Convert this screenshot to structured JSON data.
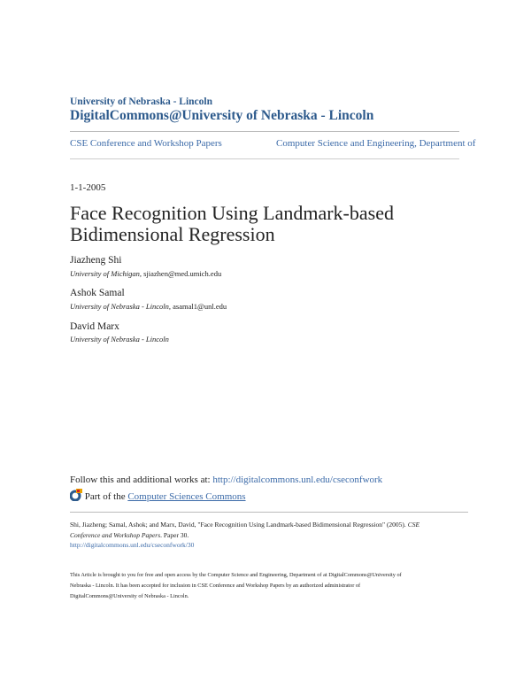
{
  "header": {
    "institution": "University of Nebraska - Lincoln",
    "repository": "DigitalCommons@University of Nebraska - Lincoln"
  },
  "nav": {
    "series": "CSE Conference and Workshop Papers",
    "department": "Computer Science and Engineering, Department of"
  },
  "date": "1-1-2005",
  "title_line1": "Face Recognition Using Landmark-based",
  "title_line2": "Bidimensional Regression",
  "authors": [
    {
      "name": "Jiazheng Shi",
      "affiliation": "University of Michigan",
      "email": "sjiazhen@med.umich.edu"
    },
    {
      "name": "Ashok Samal",
      "affiliation": "University of Nebraska - Lincoln",
      "email": "asamal1@unl.edu"
    },
    {
      "name": "David Marx",
      "affiliation": "University of Nebraska - Lincoln",
      "email": ""
    }
  ],
  "follow": {
    "text": "Follow this and additional works at: ",
    "url": "http://digitalcommons.unl.edu/cseconfwork"
  },
  "part_of": {
    "text": "Part of the ",
    "link": "Computer Sciences Commons",
    "icon": "commons-network-icon"
  },
  "citation": {
    "line1": "Shi, Jiazheng; Samal, Ashok; and Marx, David, \"Face Recognition Using Landmark-based Bidimensional Regression\" (2005). ",
    "venue1": "CSE",
    "venue2": "Conference and Workshop Papers",
    "tail": ". Paper 30.",
    "url": "http://digitalcommons.unl.edu/cseconfwork/30"
  },
  "footer": {
    "line1": "This Article is brought to you for free and open access by the Computer Science and Engineering, Department of at DigitalCommons@University of",
    "line2": "Nebraska - Lincoln. It has been accepted for inclusion in CSE Conference and Workshop Papers by an authorized administrator of",
    "line3": "DigitalCommons@University of Nebraska - Lincoln."
  },
  "colors": {
    "brand": "#2d5a8c",
    "link": "#3b6aa8"
  }
}
